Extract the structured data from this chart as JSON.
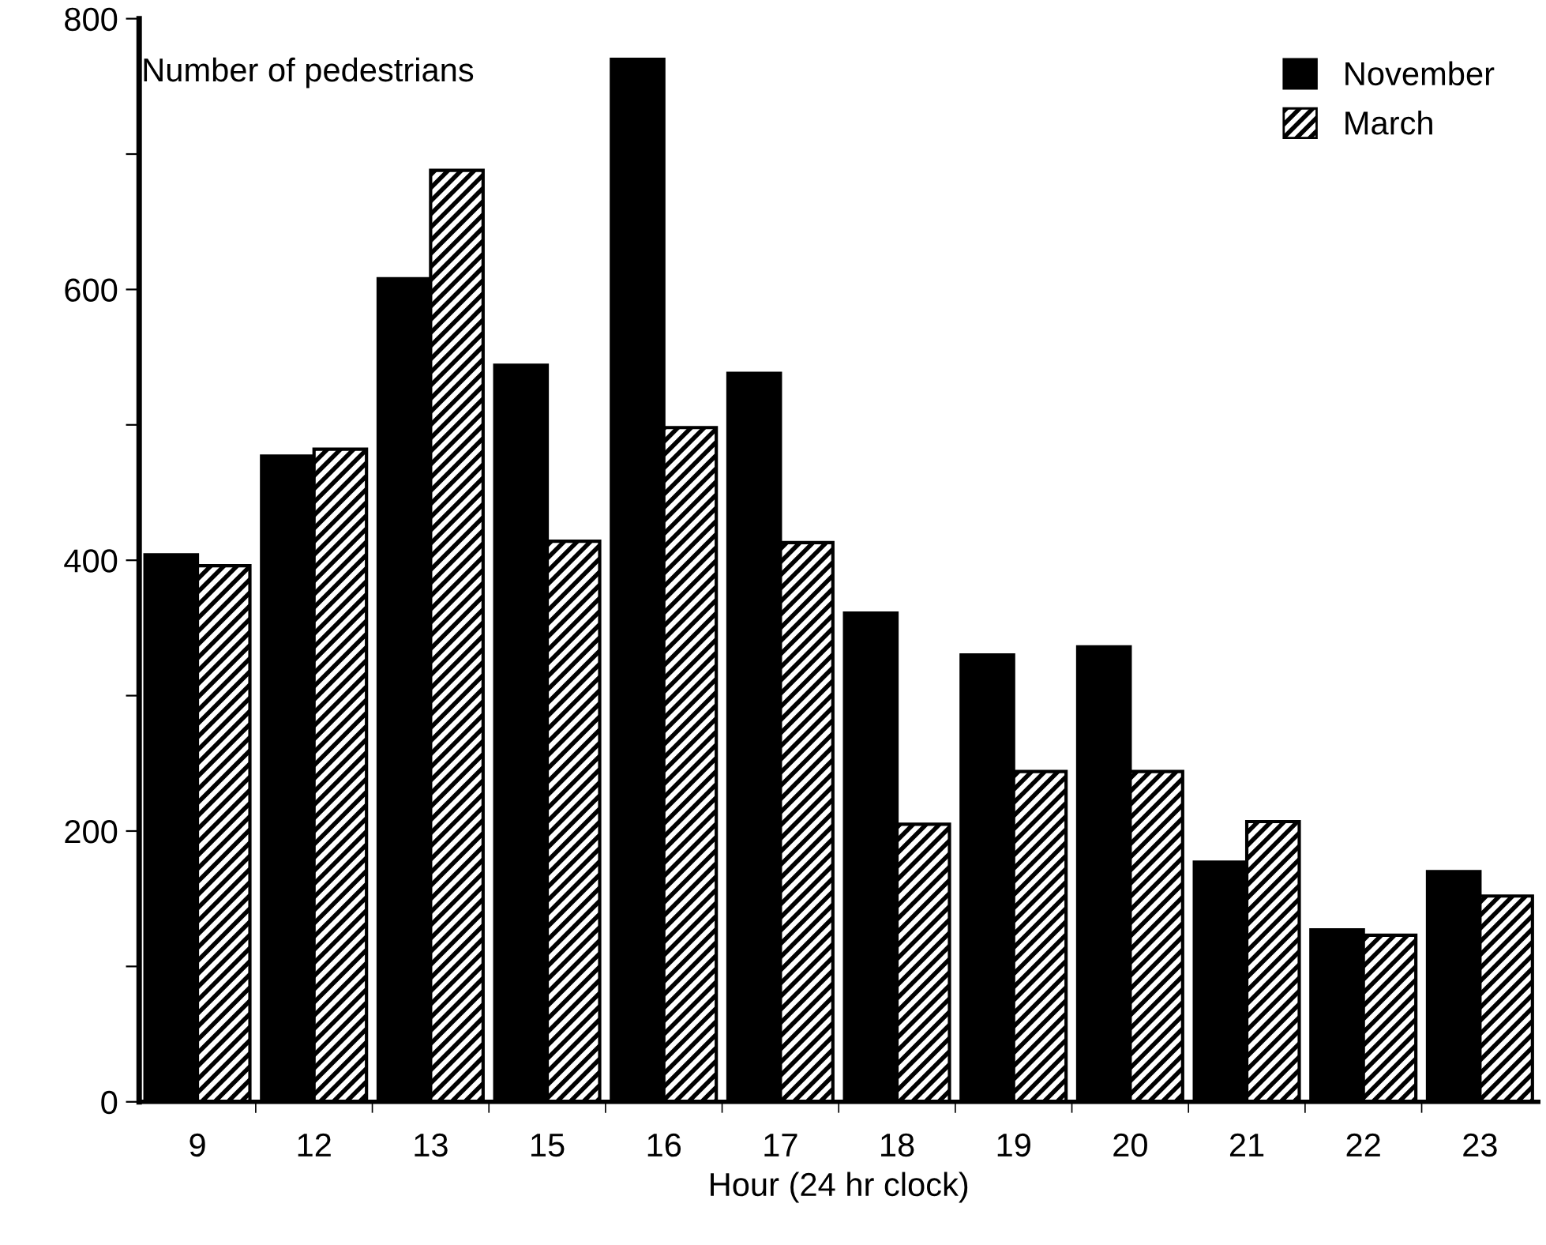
{
  "chart_data": {
    "type": "bar",
    "xlabel": "Hour (24 hr clock)",
    "ylabel": "Number of pedestrians",
    "categories": [
      "9",
      "12",
      "13",
      "15",
      "16",
      "17",
      "18",
      "19",
      "20",
      "21",
      "22",
      "23"
    ],
    "series": [
      {
        "name": "November",
        "color": "#000000",
        "values": [
          404,
          477,
          608,
          544,
          770,
          538,
          361,
          330,
          336,
          177,
          127,
          170
        ]
      },
      {
        "name": "March",
        "color": "#000000",
        "values": [
          396,
          482,
          688,
          414,
          498,
          413,
          205,
          244,
          244,
          207,
          123,
          152
        ]
      }
    ],
    "ylim": [
      0,
      800
    ],
    "yticks": [
      0,
      {
        "value": 100,
        "label": null
      },
      200,
      {
        "value": 300,
        "label": null
      },
      400,
      {
        "value": 500,
        "label": null
      },
      600,
      {
        "value": 700,
        "label": null
      },
      800
    ],
    "grid": false,
    "legend": "top right"
  }
}
